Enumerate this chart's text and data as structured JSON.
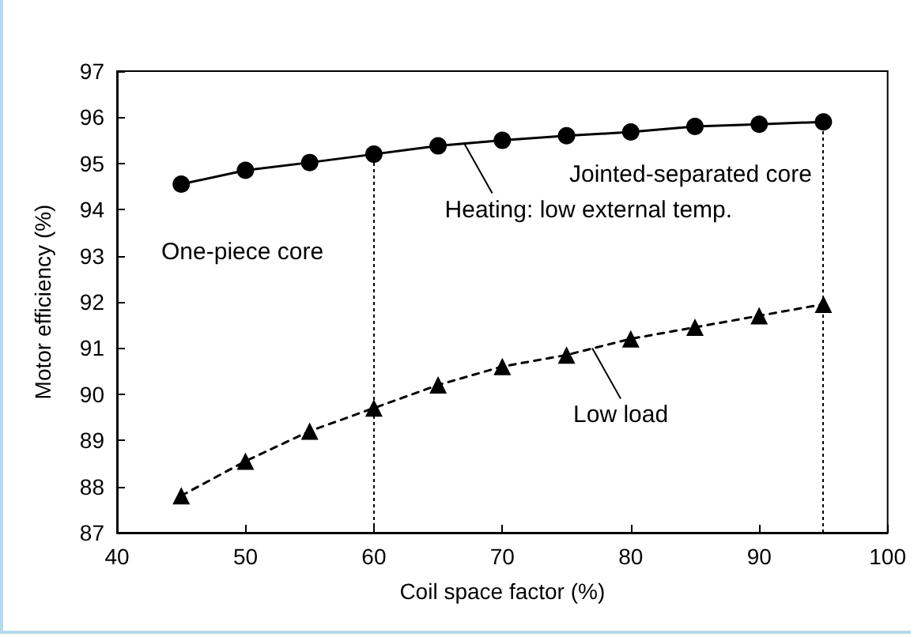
{
  "chart_data": {
    "type": "line",
    "xlabel": "Coil space factor (%)",
    "ylabel": "Motor efficiency (%)",
    "x": [
      45,
      50,
      55,
      60,
      65,
      70,
      75,
      80,
      85,
      90,
      95
    ],
    "series": [
      {
        "color": "#000000",
        "marker": "circle",
        "line_style": "solid",
        "values": [
          94.55,
          94.85,
          95.02,
          95.2,
          95.38,
          95.5,
          95.6,
          95.68,
          95.8,
          95.85,
          95.9
        ]
      },
      {
        "color": "#000000",
        "marker": "triangle",
        "line_style": "dashed",
        "values": [
          87.8,
          88.55,
          89.2,
          89.7,
          90.2,
          90.6,
          90.85,
          91.2,
          91.45,
          91.7,
          91.95
        ]
      }
    ],
    "xlim": [
      40,
      100
    ],
    "xticks": [
      40,
      50,
      60,
      70,
      80,
      90,
      100
    ],
    "ylim": [
      87,
      97
    ],
    "yticks": [
      87,
      88,
      89,
      90,
      91,
      92,
      93,
      94,
      95,
      96,
      97
    ],
    "grid": false,
    "ref_lines": [
      {
        "axis": "x",
        "value": 60,
        "line_style": "dotted"
      },
      {
        "axis": "x",
        "value": 95,
        "line_style": "dotted"
      }
    ],
    "annotations": [
      "One-piece core",
      "Jointed-separated core",
      {
        "text": "Heating: low external temp.",
        "x": 67,
        "y": 95.45
      },
      {
        "text": "Low load",
        "x": 77,
        "y": 91
      }
    ]
  }
}
